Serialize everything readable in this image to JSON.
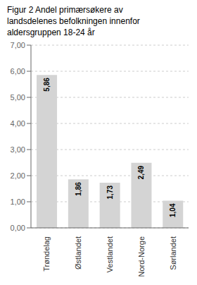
{
  "chart_data": {
    "type": "bar",
    "title": "Figur 2 Andel primærsøkere av\nlandsdelenes befolkningen innenfor\naldersgruppen 18-24 år",
    "categories": [
      "Trøndelag",
      "Østlandet",
      "Vestlandet",
      "Nord-Norge",
      "Sørlandet"
    ],
    "values": [
      5.86,
      1.86,
      1.73,
      2.49,
      1.04
    ],
    "value_labels": [
      "5,86",
      "1,86",
      "1,73",
      "2,49",
      "1,04"
    ],
    "data_labels": true,
    "color": "#d4d4d4",
    "ylim": [
      0,
      7.0
    ],
    "yticks": [
      {
        "value": 0.0,
        "label": "0,00"
      },
      {
        "value": 1.0,
        "label": "1,00"
      },
      {
        "value": 2.0,
        "label": "2,00"
      },
      {
        "value": 3.0,
        "label": "3,00"
      },
      {
        "value": 4.0,
        "label": "4,00"
      },
      {
        "value": 5.0,
        "label": "5,00"
      },
      {
        "value": 6.0,
        "label": "6,00"
      },
      {
        "value": 7.0,
        "label": "7,00"
      }
    ],
    "grid": true
  }
}
